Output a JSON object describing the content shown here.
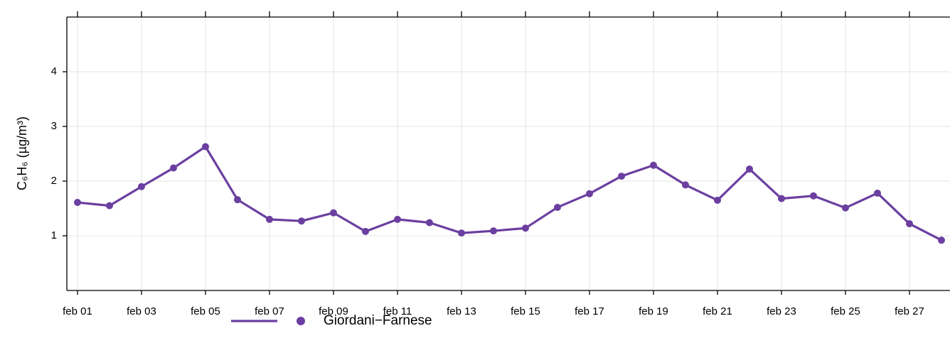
{
  "chart_data": {
    "type": "line",
    "y_label": "C₆H₆ (µg/m³)",
    "categories": [
      "feb 01",
      null,
      "feb 03",
      null,
      "feb 05",
      null,
      "feb 07",
      null,
      "feb 09",
      null,
      "feb 11",
      null,
      "feb 13",
      null,
      "feb 15",
      null,
      "feb 17",
      null,
      "feb 19",
      null,
      "feb 21",
      null,
      "feb 23",
      null,
      "feb 25",
      null,
      "feb 27",
      null
    ],
    "series": [
      {
        "name": "Giordani−Farnese",
        "color": "#6b3fa0",
        "values": [
          1.61,
          1.55,
          1.9,
          2.24,
          2.63,
          1.66,
          1.3,
          1.27,
          1.42,
          1.08,
          1.3,
          1.24,
          1.05,
          1.09,
          1.14,
          1.52,
          1.77,
          2.09,
          2.29,
          1.93,
          1.65,
          2.22,
          1.68,
          1.73,
          1.51,
          1.78,
          1.22,
          0.92
        ]
      }
    ],
    "ylim": [
      0,
      5
    ],
    "yticks": [
      1,
      2,
      3,
      4
    ],
    "grid": true,
    "legend": "bottom"
  }
}
